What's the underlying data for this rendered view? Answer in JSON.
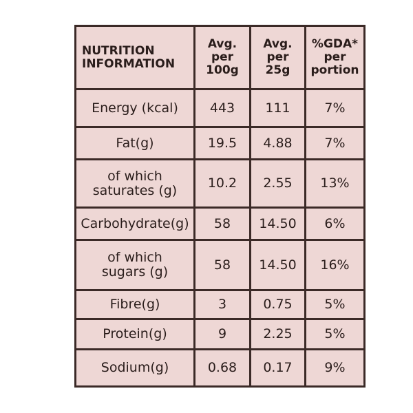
{
  "table": {
    "header": [
      [
        "NUTRITION",
        "INFORMATION"
      ],
      [
        "Avg.",
        "per",
        "100g"
      ],
      [
        "Avg.",
        "per",
        "25g"
      ],
      [
        "%GDA*",
        "per",
        "portion"
      ]
    ],
    "rows": [
      [
        "Energy (kcal)",
        "443",
        "111",
        "7%"
      ],
      [
        "Fat(g)",
        "19.5",
        "4.88",
        "7%"
      ],
      [
        [
          "of which",
          "saturates (g)"
        ],
        "10.2",
        "2.55",
        "13%"
      ],
      [
        "Carbohydrate(g)",
        "58",
        "14.50",
        "6%"
      ],
      [
        [
          "of which",
          "sugars (g)"
        ],
        "58",
        "14.50",
        "16%"
      ],
      [
        "Fibre(g)",
        "3",
        "0.75",
        "5%"
      ],
      [
        "Protein(g)",
        "9",
        "2.25",
        "5%"
      ],
      [
        "Sodium(g)",
        "0.68",
        "0.17",
        "9%"
      ]
    ]
  }
}
